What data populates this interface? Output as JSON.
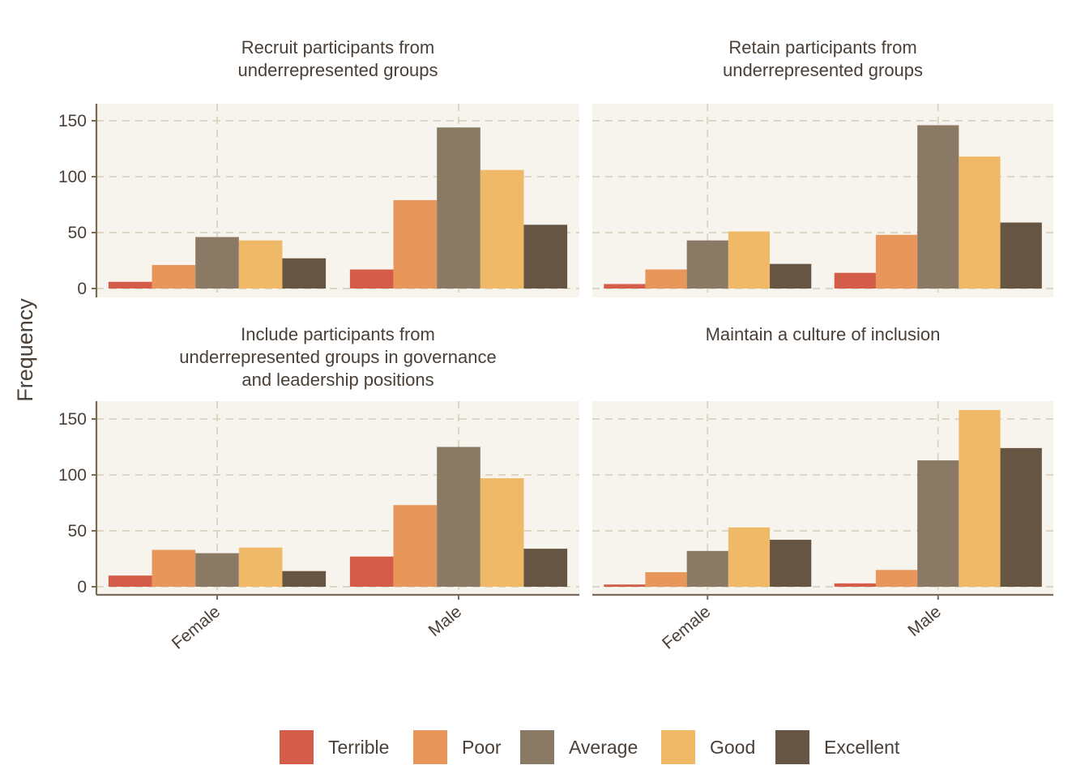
{
  "chart_data": {
    "type": "bar",
    "ylabel": "Frequency",
    "ylim": [
      0,
      165
    ],
    "yticks": [
      0,
      50,
      100,
      150
    ],
    "categories": [
      "Female",
      "Male"
    ],
    "grid": true,
    "legend_position": "bottom",
    "series_names": [
      "Terrible",
      "Poor",
      "Average",
      "Good",
      "Excellent"
    ],
    "colors": [
      "#d45d4a",
      "#e8965a",
      "#8a7a65",
      "#f0b968",
      "#665542"
    ],
    "panels": [
      {
        "title_lines": [
          "Recruit participants from",
          "underrepresented groups"
        ],
        "series": [
          {
            "name": "Terrible",
            "values": [
              6,
              17
            ]
          },
          {
            "name": "Poor",
            "values": [
              21,
              79
            ]
          },
          {
            "name": "Average",
            "values": [
              46,
              144
            ]
          },
          {
            "name": "Good",
            "values": [
              43,
              106
            ]
          },
          {
            "name": "Excellent",
            "values": [
              27,
              57
            ]
          }
        ]
      },
      {
        "title_lines": [
          "Retain participants from",
          "underrepresented groups"
        ],
        "series": [
          {
            "name": "Terrible",
            "values": [
              4,
              14
            ]
          },
          {
            "name": "Poor",
            "values": [
              17,
              48
            ]
          },
          {
            "name": "Average",
            "values": [
              43,
              146
            ]
          },
          {
            "name": "Good",
            "values": [
              51,
              118
            ]
          },
          {
            "name": "Excellent",
            "values": [
              22,
              59
            ]
          }
        ]
      },
      {
        "title_lines": [
          "Include participants from",
          "underrepresented groups in governance",
          "and leadership positions"
        ],
        "series": [
          {
            "name": "Terrible",
            "values": [
              10,
              27
            ]
          },
          {
            "name": "Poor",
            "values": [
              33,
              73
            ]
          },
          {
            "name": "Average",
            "values": [
              30,
              125
            ]
          },
          {
            "name": "Good",
            "values": [
              35,
              97
            ]
          },
          {
            "name": "Excellent",
            "values": [
              14,
              34
            ]
          }
        ]
      },
      {
        "title_lines": [
          "Maintain a culture of inclusion"
        ],
        "series": [
          {
            "name": "Terrible",
            "values": [
              2,
              3
            ]
          },
          {
            "name": "Poor",
            "values": [
              13,
              15
            ]
          },
          {
            "name": "Average",
            "values": [
              32,
              113
            ]
          },
          {
            "name": "Good",
            "values": [
              53,
              158
            ]
          },
          {
            "name": "Excellent",
            "values": [
              42,
              124
            ]
          }
        ]
      }
    ]
  }
}
